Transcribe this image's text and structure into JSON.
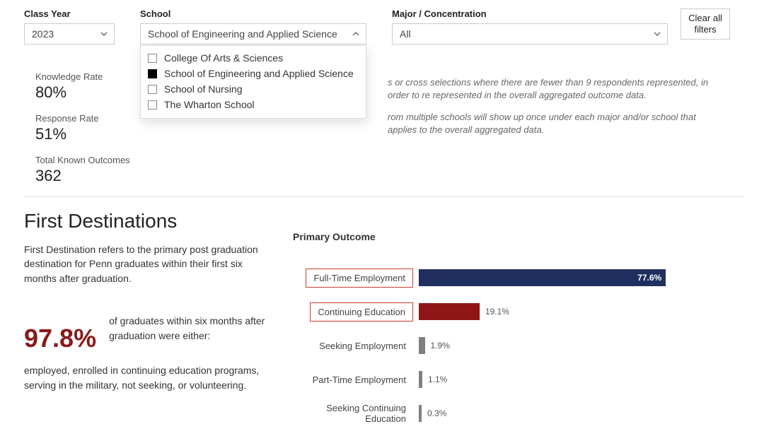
{
  "filters": {
    "classYear": {
      "label": "Class Year",
      "value": "2023"
    },
    "school": {
      "label": "School",
      "value": "School of Engineering and Applied Science",
      "options": [
        {
          "label": "College Of Arts & Sciences",
          "checked": false
        },
        {
          "label": "School of Engineering and Applied Science",
          "checked": true
        },
        {
          "label": "School of Nursing",
          "checked": false
        },
        {
          "label": "The Wharton School",
          "checked": false
        }
      ]
    },
    "major": {
      "label": "Major / Concentration",
      "value": "All"
    },
    "clear": {
      "line1": "Clear all",
      "line2": "filters"
    }
  },
  "stats": {
    "knowledgeRate": {
      "label": "Knowledge Rate",
      "value": "80%"
    },
    "responseRate": {
      "label": "Response Rate",
      "value": "51%"
    },
    "totalKnown": {
      "label": "Total Known Outcomes",
      "value": "362"
    }
  },
  "notes": {
    "p1": "s or cross selections where there are fewer than 9 respondents represented, in order to re represented in the overall aggregated outcome data.",
    "p2": "rom multiple schools will show up once under each major and/or school that applies to the overall aggregated data."
  },
  "section": {
    "title": "First Destinations",
    "desc": "First Destination refers to the primary post graduation destination for Penn graduates within their first six months after graduation.",
    "bigPct": "97.8%",
    "pctLead": "of graduates within six months after graduation were either:",
    "desc2": "employed, enrolled in continuing education programs, serving in the military, not seeking, or volunteering."
  },
  "chart": {
    "title": "Primary Outcome",
    "type": "bar-horizontal",
    "maxPct": 100,
    "trackWidthPx": 450,
    "colors": {
      "navy": "#1f2f5f",
      "darkred": "#8f1616",
      "gray": "#808080",
      "highlightBorder": "#cc3b2e",
      "valueOut": "#555555",
      "valueIn": "#ffffff"
    },
    "bars": [
      {
        "label": "Full-Time Employment",
        "valueText": "77.6%",
        "pct": 77.6,
        "colorKey": "navy",
        "highlighted": true,
        "valueInside": true
      },
      {
        "label": "Continuing Education",
        "valueText": "19.1%",
        "pct": 19.1,
        "colorKey": "darkred",
        "highlighted": true,
        "valueInside": false
      },
      {
        "label": "Seeking Employment",
        "valueText": "1.9%",
        "pct": 1.9,
        "colorKey": "gray",
        "highlighted": false,
        "valueInside": false
      },
      {
        "label": "Part-Time Employment",
        "valueText": "1.1%",
        "pct": 1.1,
        "colorKey": "gray",
        "highlighted": false,
        "valueInside": false
      },
      {
        "label": "Seeking Continuing Education",
        "valueText": "0.3%",
        "pct": 0.3,
        "colorKey": "gray",
        "highlighted": false,
        "valueInside": false
      }
    ]
  }
}
